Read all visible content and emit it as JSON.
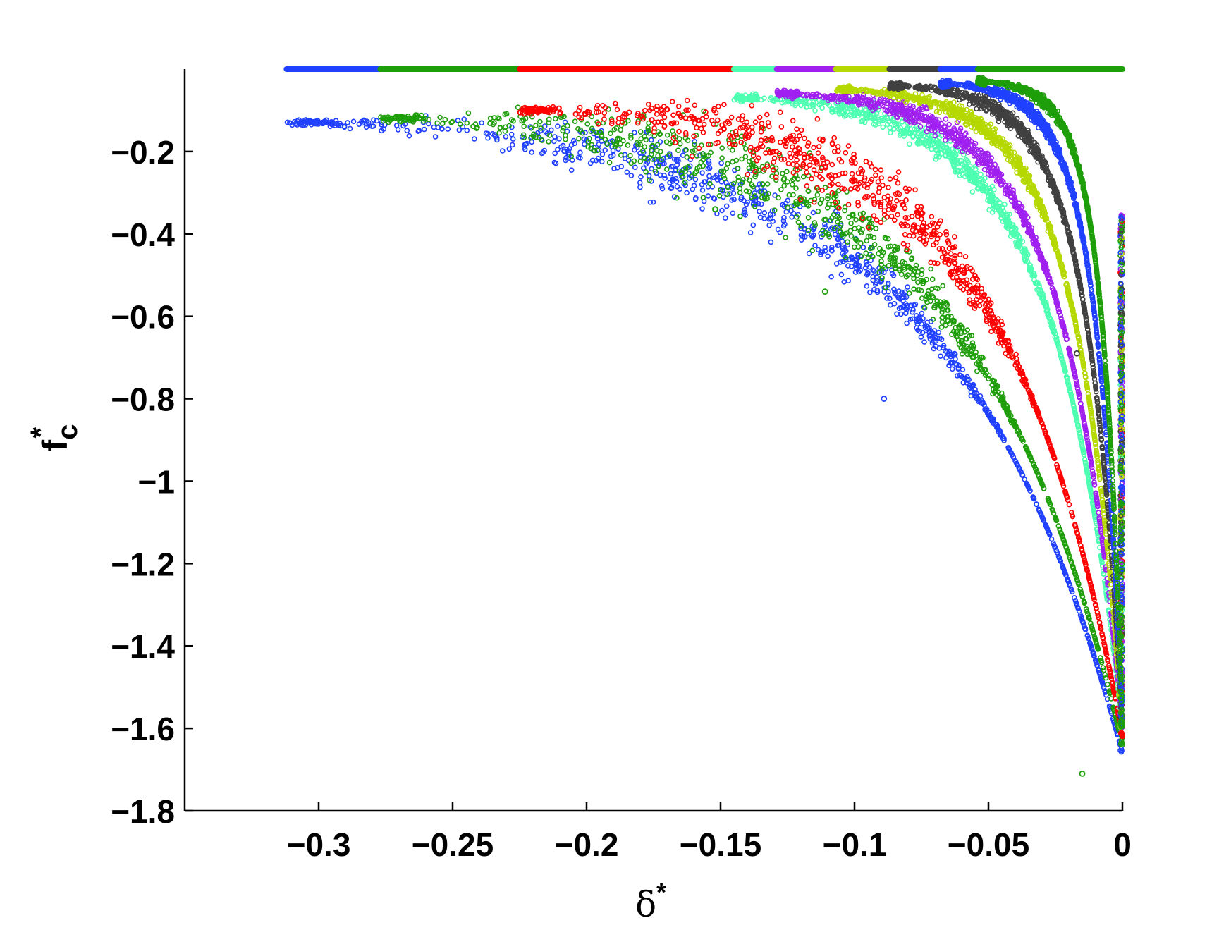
{
  "chart_data": {
    "type": "scatter",
    "title": "",
    "xlabel": "δ*",
    "ylabel": "f_c*",
    "xlabel_parts": {
      "base": "δ",
      "sup": "*"
    },
    "ylabel_parts": {
      "base": "f",
      "sub": "c",
      "sup": "*"
    },
    "xlim": [
      -0.35,
      0
    ],
    "ylim": [
      -1.8,
      0
    ],
    "x_ticks": [
      -0.3,
      -0.25,
      -0.2,
      -0.15,
      -0.1,
      -0.05,
      0
    ],
    "x_tick_labels": [
      "−0.3",
      "−0.25",
      "−0.2",
      "−0.15",
      "−0.1",
      "−0.05",
      "0"
    ],
    "y_ticks": [
      -0.2,
      -0.4,
      -0.6,
      -0.8,
      -1,
      -1.2,
      -1.4,
      -1.6,
      -1.8
    ],
    "y_tick_labels": [
      "−0.2",
      "−0.4",
      "−0.6",
      "−0.8",
      "−1",
      "−1.2",
      "−1.4",
      "−1.6",
      "−1.8"
    ],
    "grid": false,
    "legend": "none",
    "marker": "open-circle",
    "series": [
      {
        "color": "#2040ff",
        "x_start": -0.312,
        "x_end": 0,
        "y_start": -0.13,
        "y_end": -1.66,
        "spread": 0.12
      },
      {
        "color": "#1e9e0a",
        "x_start": -0.277,
        "x_end": 0,
        "y_start": -0.12,
        "y_end": -1.64,
        "spread": 0.14
      },
      {
        "color": "#ff0000",
        "x_start": -0.225,
        "x_end": 0,
        "y_start": -0.1,
        "y_end": -1.62,
        "spread": 0.13
      },
      {
        "color": "#4dffb0",
        "x_start": -0.145,
        "x_end": 0,
        "y_start": -0.07,
        "y_end": -1.6,
        "spread": 0.05
      },
      {
        "color": "#a020f0",
        "x_start": -0.129,
        "x_end": 0,
        "y_start": -0.06,
        "y_end": -1.6,
        "spread": 0.04
      },
      {
        "color": "#b5d900",
        "x_start": -0.107,
        "x_end": 0,
        "y_start": -0.05,
        "y_end": -1.6,
        "spread": 0.035
      },
      {
        "color": "#404040",
        "x_start": -0.087,
        "x_end": 0,
        "y_start": -0.04,
        "y_end": -1.6,
        "spread": 0.03
      },
      {
        "color": "#2040ff",
        "x_start": -0.068,
        "x_end": 0,
        "y_start": -0.035,
        "y_end": -1.6,
        "spread": 0.025
      },
      {
        "color": "#1e9e0a",
        "x_start": -0.054,
        "x_end": 0,
        "y_start": -0.03,
        "y_end": -1.6,
        "spread": 0.02
      }
    ],
    "top_band": {
      "y": 0,
      "segments": [
        {
          "color": "#2040ff",
          "x_start": -0.312,
          "x_end": -0.277
        },
        {
          "color": "#1e9e0a",
          "x_start": -0.277,
          "x_end": -0.225
        },
        {
          "color": "#ff0000",
          "x_start": -0.225,
          "x_end": -0.145
        },
        {
          "color": "#4dffb0",
          "x_start": -0.145,
          "x_end": -0.129
        },
        {
          "color": "#a020f0",
          "x_start": -0.129,
          "x_end": -0.107
        },
        {
          "color": "#b5d900",
          "x_start": -0.107,
          "x_end": -0.087
        },
        {
          "color": "#404040",
          "x_start": -0.087,
          "x_end": -0.068
        },
        {
          "color": "#2040ff",
          "x_start": -0.068,
          "x_end": -0.054
        },
        {
          "color": "#1e9e0a",
          "x_start": -0.054,
          "x_end": 0
        }
      ]
    },
    "outliers": [
      {
        "x": -0.015,
        "y": -1.71,
        "color": "#1e9e0a"
      },
      {
        "x": -0.089,
        "y": -0.8,
        "color": "#2040ff"
      },
      {
        "x": -0.111,
        "y": -0.54,
        "color": "#1e9e0a"
      },
      {
        "x": -0.017,
        "y": -0.69,
        "color": "#404040"
      },
      {
        "x": -0.152,
        "y": -0.34,
        "color": "#1e9e0a"
      }
    ]
  }
}
